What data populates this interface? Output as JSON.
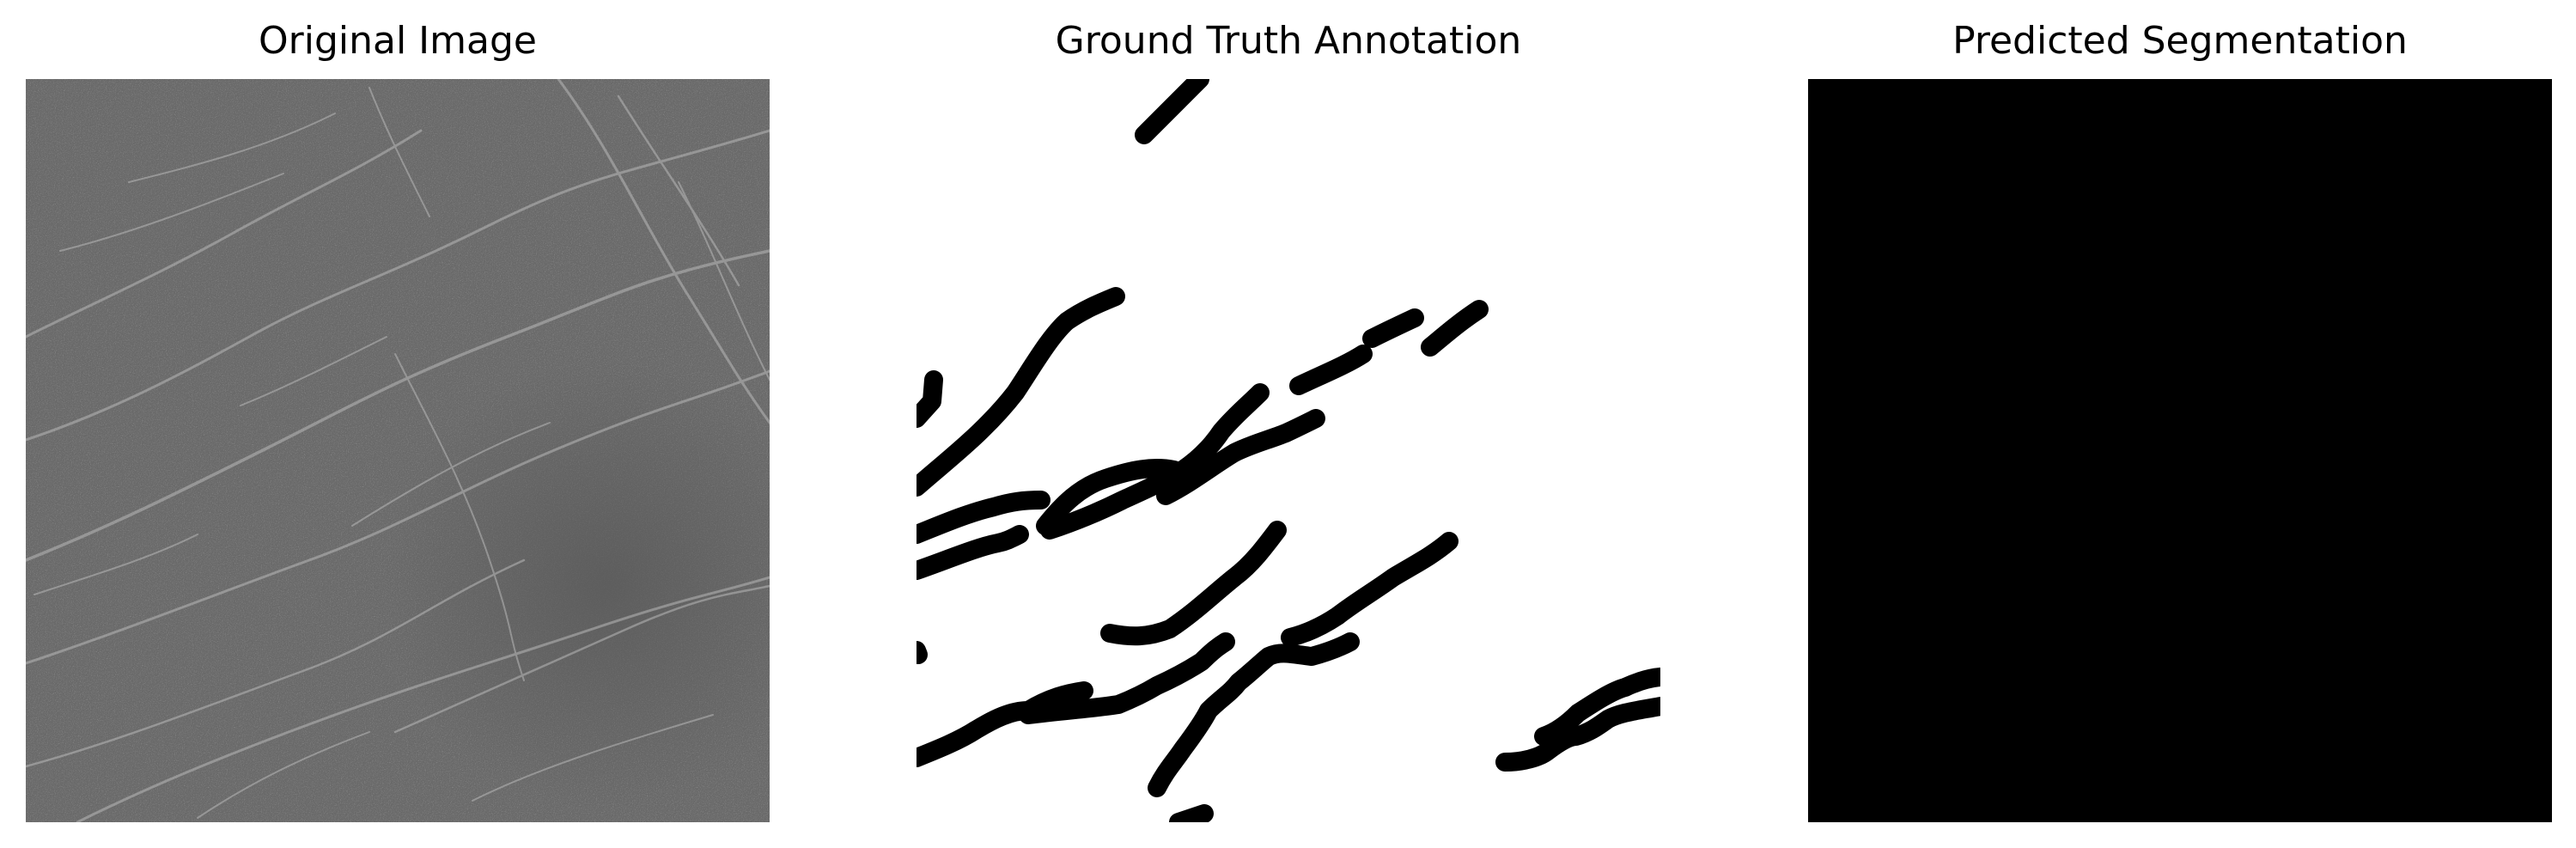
{
  "figure": {
    "panels": [
      {
        "id": "original",
        "title": "Original Image",
        "content": "grayscale-texture",
        "colors": {
          "base": "#6b6b6b",
          "dark": "#5a5a5a",
          "highlight": "#b9b9b9"
        }
      },
      {
        "id": "ground-truth",
        "title": "Ground Truth Annotation",
        "content": "binary-mask",
        "colors": {
          "background": "#ffffff",
          "foreground": "#000000"
        }
      },
      {
        "id": "predicted",
        "title": "Predicted Segmentation",
        "content": "empty-mask",
        "colors": {
          "background": "#000000"
        }
      }
    ]
  }
}
